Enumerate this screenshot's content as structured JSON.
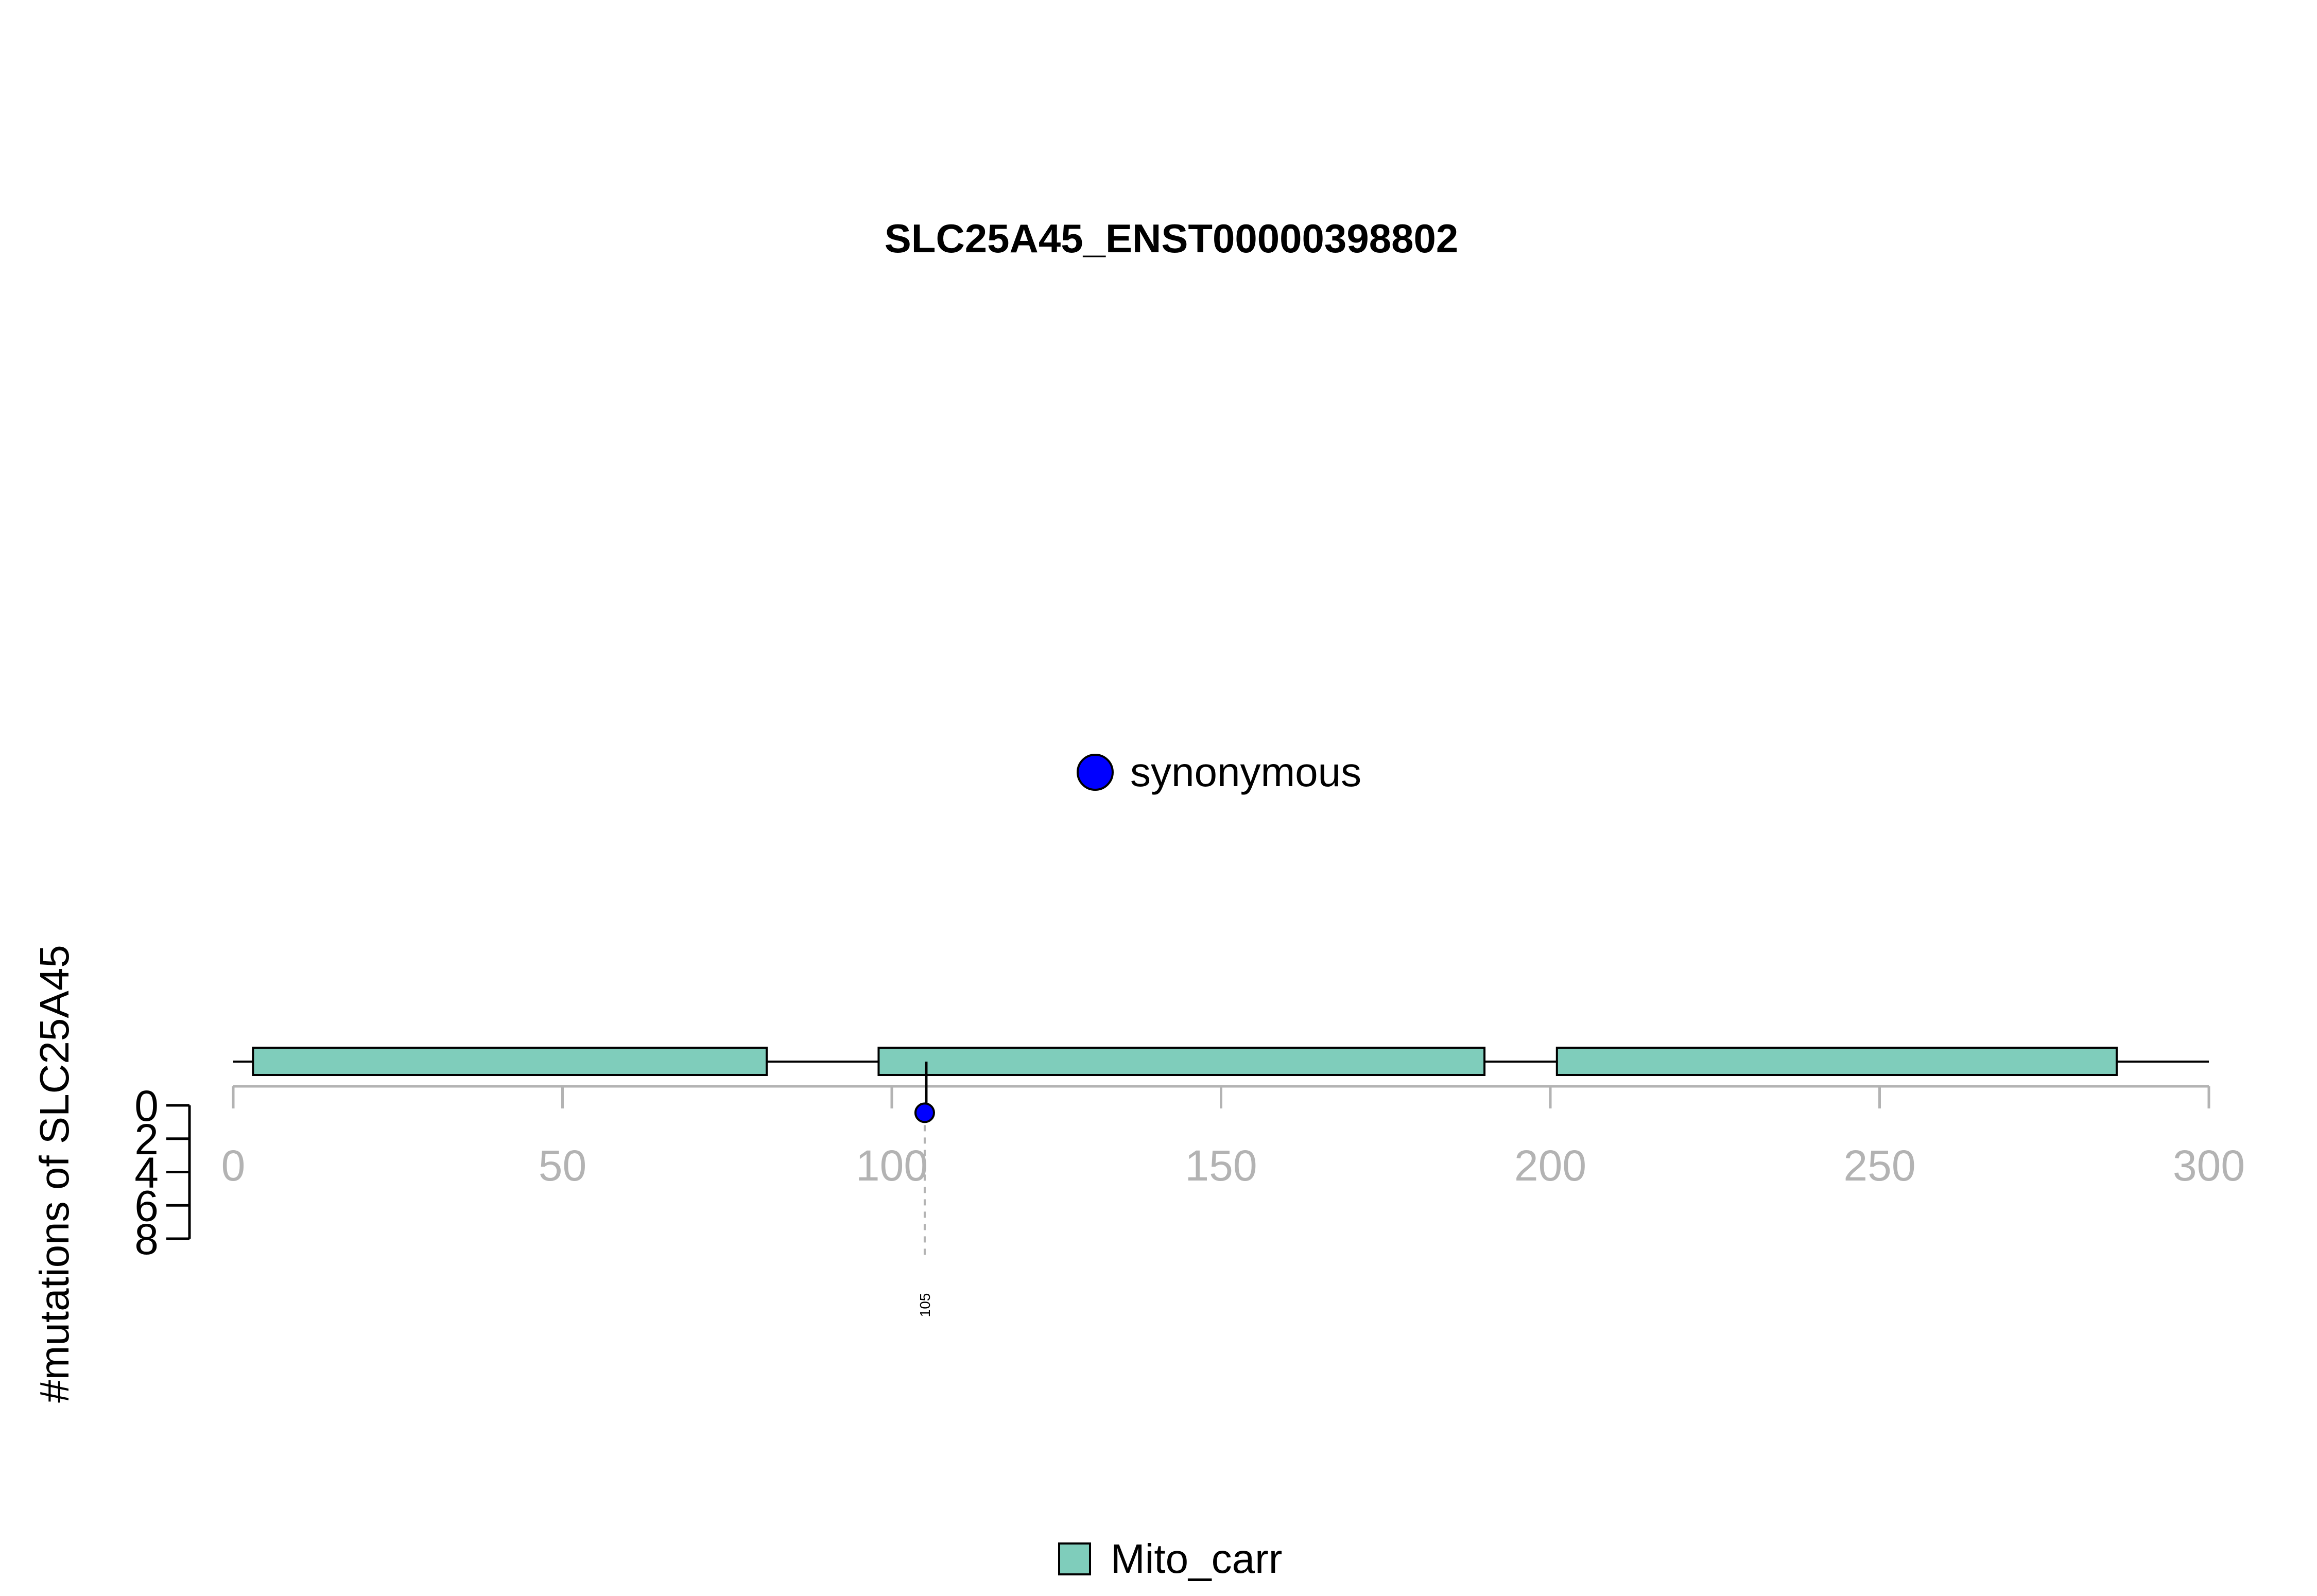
{
  "chart_data": {
    "type": "lollipop",
    "title": "SLC25A45_ENST00000398802",
    "ylabel": "#mutations of SLC25A45",
    "xlim": [
      0,
      300
    ],
    "x_ticks": [
      0,
      50,
      100,
      150,
      200,
      250,
      300
    ],
    "ylim": [
      0,
      8
    ],
    "y_ticks": [
      0,
      2,
      4,
      6,
      8
    ],
    "domains": [
      {
        "name": "Mito_carr",
        "start": 3,
        "end": 81
      },
      {
        "name": "Mito_carr",
        "start": 98,
        "end": 190
      },
      {
        "name": "Mito_carr",
        "start": 201,
        "end": 286
      }
    ],
    "mutations": [
      {
        "position": 105,
        "count": 1,
        "type": "synonymous",
        "label": "105"
      }
    ],
    "mutation_legend": [
      {
        "label": "synonymous",
        "color": "#0000ff"
      }
    ],
    "domain_legend": [
      {
        "label": "Mito_carr",
        "color": "#7fcdbb"
      }
    ],
    "colors": {
      "domain_fill": "#7fcdbb",
      "synonymous": "#0000ff",
      "axis_grey": "#b3b3b3"
    }
  }
}
